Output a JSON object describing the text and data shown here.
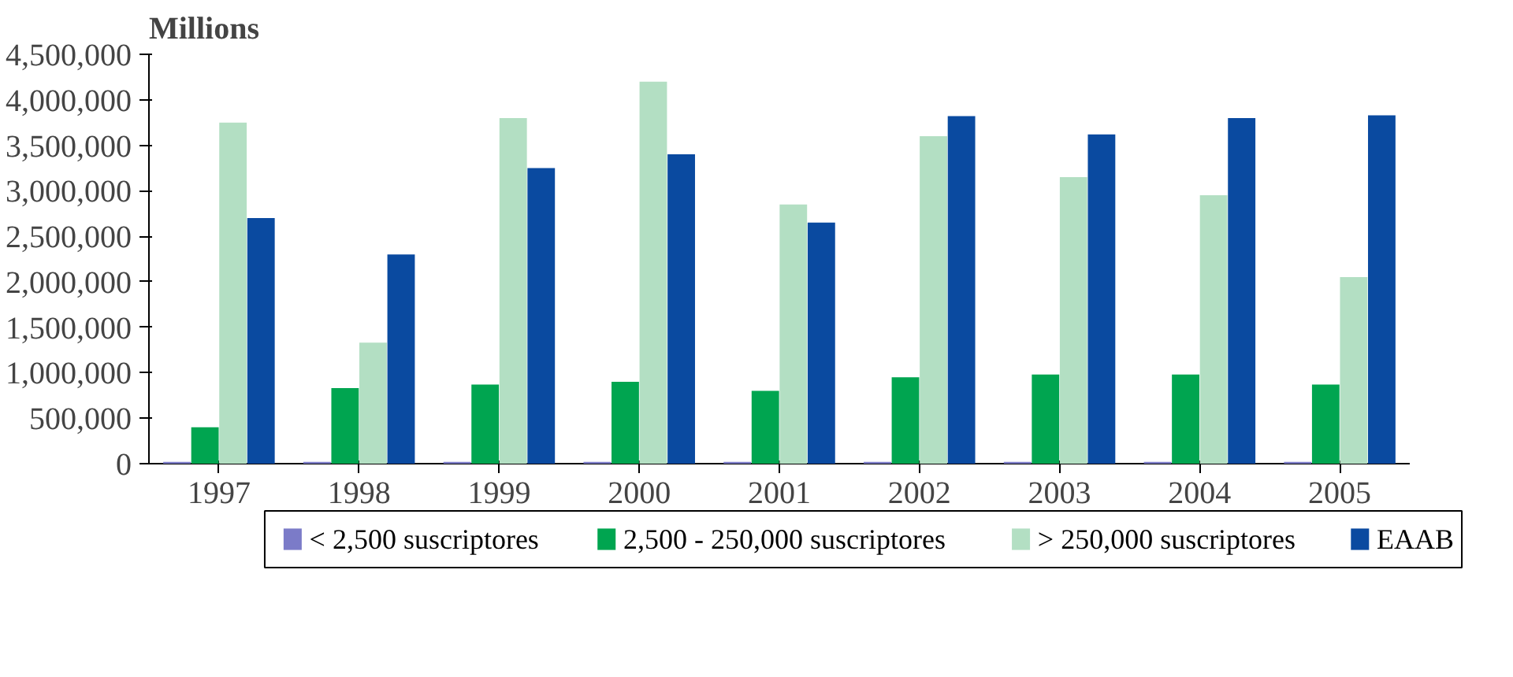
{
  "chart_data": {
    "type": "bar",
    "title": "Millions",
    "categories": [
      "1997",
      "1998",
      "1999",
      "2000",
      "2001",
      "2002",
      "2003",
      "2004",
      "2005"
    ],
    "series": [
      {
        "name": "< 2,500 suscriptores",
        "color": "#7b7bc8",
        "values": [
          20000,
          20000,
          20000,
          20000,
          20000,
          20000,
          20000,
          20000,
          20000
        ]
      },
      {
        "name": "2,500 - 250,000 suscriptores",
        "color": "#00a550",
        "values": [
          400000,
          830000,
          870000,
          900000,
          800000,
          950000,
          980000,
          980000,
          870000
        ]
      },
      {
        "name": "> 250,000 suscriptores",
        "color": "#b3dfc3",
        "values": [
          3750000,
          1330000,
          3800000,
          4200000,
          2850000,
          3600000,
          3150000,
          2950000,
          2050000
        ]
      },
      {
        "name": "EAAB",
        "color": "#0a4aa0",
        "values": [
          2700000,
          2300000,
          3250000,
          3400000,
          2650000,
          3820000,
          3620000,
          3800000,
          3830000
        ]
      }
    ],
    "ylim": [
      0,
      4500000
    ],
    "yticks": [
      {
        "value": 0,
        "label": "0"
      },
      {
        "value": 500000,
        "label": "500,000"
      },
      {
        "value": 1000000,
        "label": "1,000,000"
      },
      {
        "value": 1500000,
        "label": "1,500,000"
      },
      {
        "value": 2000000,
        "label": "2,000,000"
      },
      {
        "value": 2500000,
        "label": "2,500,000"
      },
      {
        "value": 3000000,
        "label": "3,000,000"
      },
      {
        "value": 3500000,
        "label": "3,500,000"
      },
      {
        "value": 4000000,
        "label": "4,000,000"
      },
      {
        "value": 4500000,
        "label": "4,500,000"
      }
    ],
    "grid": false,
    "legend": "bottom"
  }
}
